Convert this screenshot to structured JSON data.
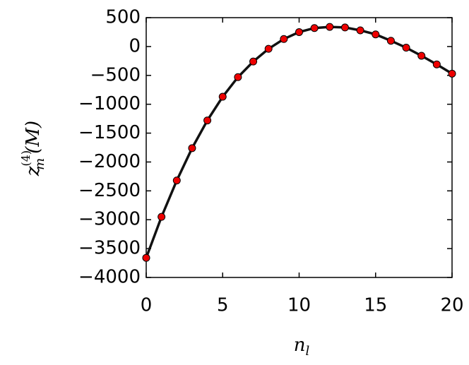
{
  "chart_data": {
    "type": "line",
    "x": [
      0,
      1,
      2,
      3,
      4,
      5,
      6,
      7,
      8,
      9,
      10,
      11,
      12,
      13,
      14,
      15,
      16,
      17,
      18,
      19,
      20
    ],
    "series": [
      {
        "color": "#111111",
        "marker_color": "#ee0000",
        "values": [
          -3660,
          -2950,
          -2320,
          -1760,
          -1280,
          -870,
          -530,
          -260,
          -40,
          130,
          250,
          320,
          340,
          330,
          280,
          210,
          100,
          -20,
          -160,
          -310,
          -470
        ]
      }
    ],
    "xlim": [
      0,
      20
    ],
    "xticks": [
      0,
      5,
      10,
      15,
      20
    ],
    "ylim": [
      -4000,
      500
    ],
    "yticks": [
      {
        "value": -4000,
        "label": "−4000"
      },
      {
        "value": -3500,
        "label": "−3500"
      },
      {
        "value": -3000,
        "label": "−3000"
      },
      {
        "value": -2500,
        "label": "−2500"
      },
      {
        "value": -2000,
        "label": "−2000"
      },
      {
        "value": -1500,
        "label": "−1500"
      },
      {
        "value": -1000,
        "label": "−1000"
      },
      {
        "value": -500,
        "label": "−500"
      },
      0,
      500
    ],
    "xlabel": {
      "text": "n",
      "sub": "l"
    },
    "ylabel": {
      "text": "z",
      "sup": "(4)",
      "sub": "m",
      "suffix": "(M)"
    },
    "grid": false
  }
}
